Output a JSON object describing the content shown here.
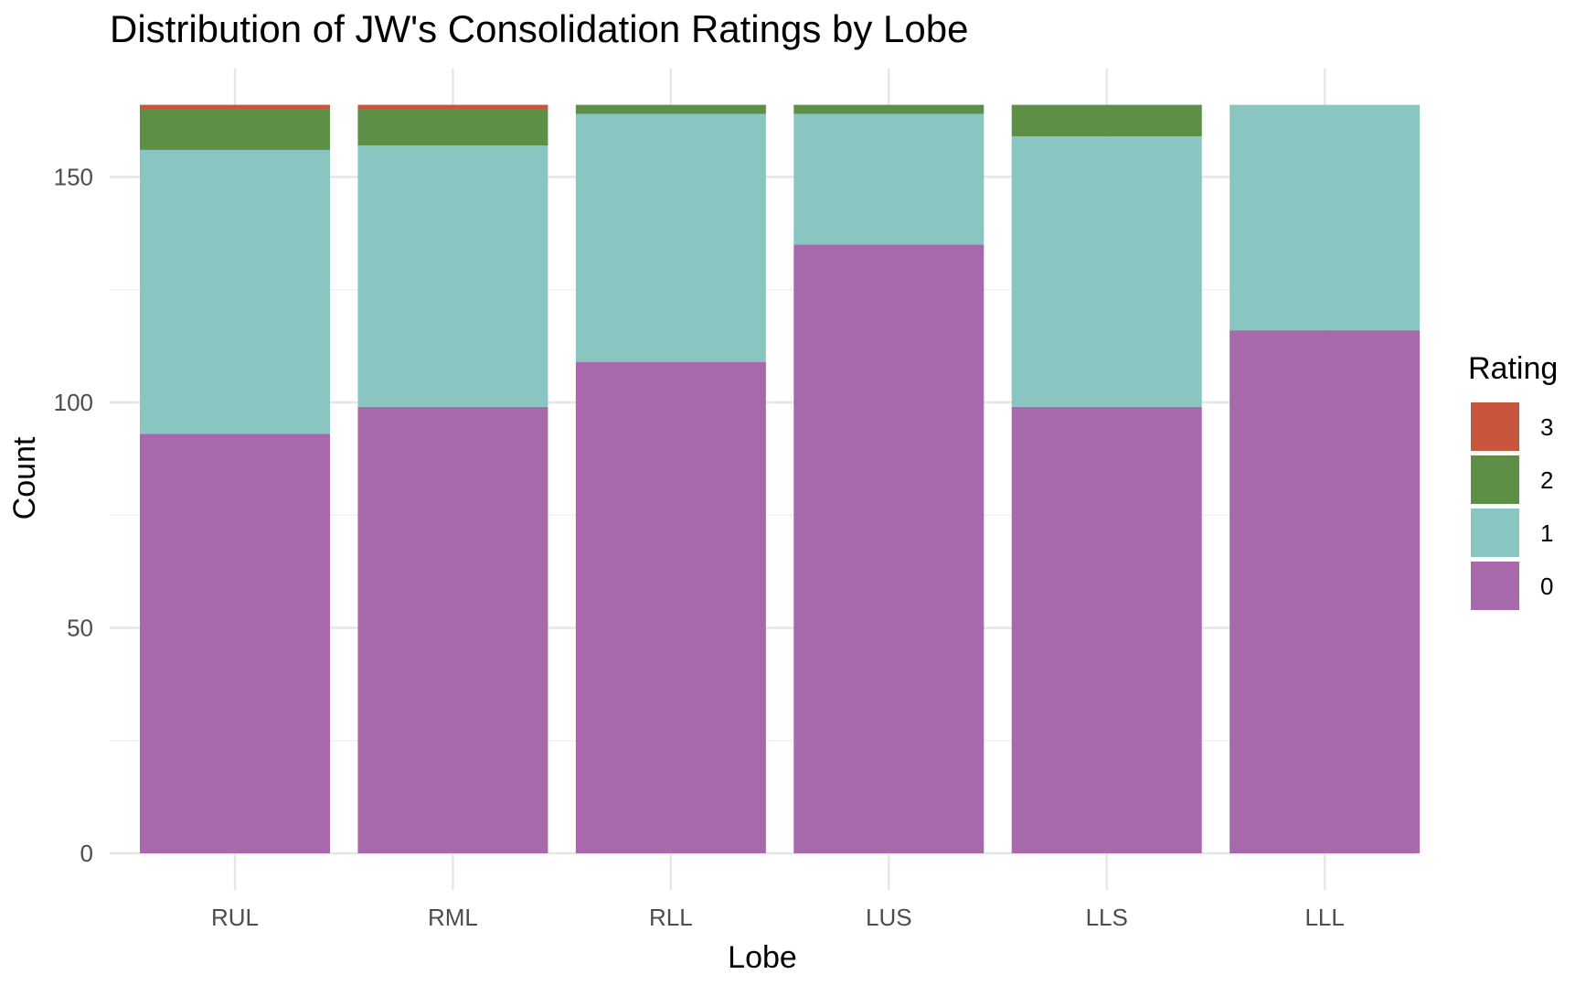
{
  "chart_data": {
    "type": "bar",
    "stacked": true,
    "title": "Distribution of JW's Consolidation Ratings by Lobe",
    "xlabel": "Lobe",
    "ylabel": "Count",
    "categories": [
      "RUL",
      "RML",
      "RLL",
      "LUS",
      "LLS",
      "LLL"
    ],
    "ylim": [
      0,
      166
    ],
    "yticks": [
      0,
      50,
      100,
      150
    ],
    "grid": true,
    "legend": {
      "title": "Rating",
      "position": "right"
    },
    "series": [
      {
        "name": "0",
        "color": "#A868AC",
        "values": [
          93,
          99,
          109,
          135,
          99,
          116
        ]
      },
      {
        "name": "1",
        "color": "#8AC6C1",
        "values": [
          63,
          58,
          55,
          29,
          60,
          50
        ]
      },
      {
        "name": "2",
        "color": "#5D8F47",
        "values": [
          9,
          8,
          2,
          2,
          7,
          0
        ]
      },
      {
        "name": "3",
        "color": "#C8553D",
        "values": [
          1,
          1,
          0,
          0,
          0,
          0
        ]
      }
    ],
    "legend_order": [
      "3",
      "2",
      "1",
      "0"
    ]
  }
}
